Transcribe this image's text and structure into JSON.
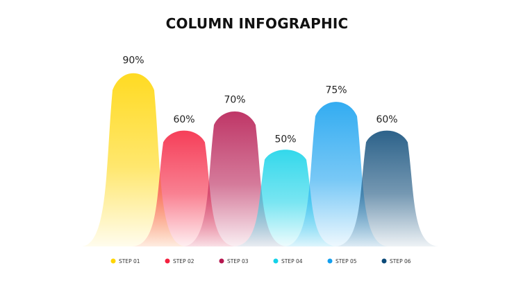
{
  "chart_data": {
    "type": "area",
    "title": "COLUMN INFOGRAPHIC",
    "xlabel": "",
    "ylabel": "",
    "ylim": [
      0,
      100
    ],
    "grid": false,
    "legend_placement": "bottom",
    "categories": [
      "STEP 01",
      "STEP 02",
      "STEP 03",
      "STEP 04",
      "STEP 05",
      "STEP 06"
    ],
    "values": [
      90,
      60,
      70,
      50,
      75,
      60
    ],
    "value_labels": [
      "90%",
      "60%",
      "70%",
      "50%",
      "75%",
      "60%"
    ],
    "colors": [
      "#FFD500",
      "#F4213F",
      "#B5174F",
      "#14D2E8",
      "#139FEF",
      "#0C4A78"
    ]
  }
}
